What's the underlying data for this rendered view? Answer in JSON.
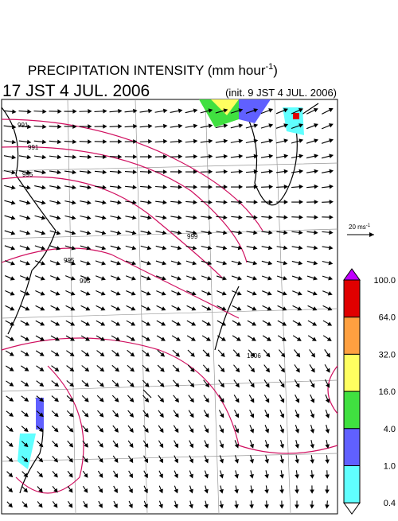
{
  "header": {
    "title": {
      "text": "PRECIPITATION INTENSITY (mm hour",
      "sup": "-1",
      "close": ")"
    },
    "valid_time": "17 JST 4 JUL. 2006",
    "init_time": "(init. 9 JST 4 JUL. 2006)"
  },
  "vector_scale": {
    "label": "20 ms",
    "sup": "-1"
  },
  "legend": {
    "over_color": "#c000ff",
    "levels": [
      {
        "label": "100.0",
        "color": "#e00000"
      },
      {
        "label": "64.0",
        "color": "#ffa040"
      },
      {
        "label": "32.0",
        "color": "#ffff60"
      },
      {
        "label": "16.0",
        "color": "#40e040"
      },
      {
        "label": "4.0",
        "color": "#6060ff"
      },
      {
        "label": "1.0",
        "color": "#60ffff"
      },
      {
        "label": "0.4",
        "color": "#ffffff"
      }
    ]
  },
  "contour_labels": [
    "991",
    "991",
    "995",
    "995",
    "995",
    "999",
    "1006"
  ]
}
